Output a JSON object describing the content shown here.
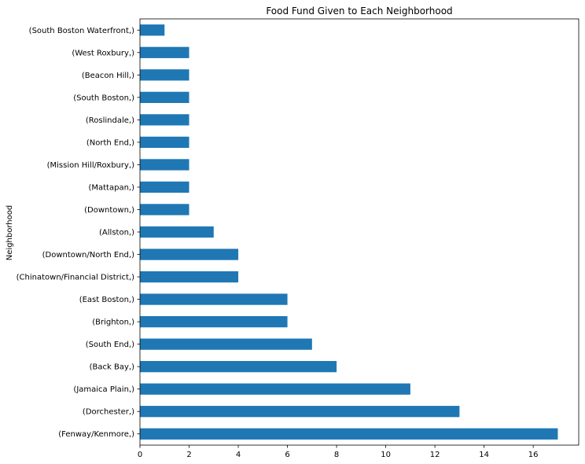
{
  "chart_data": {
    "type": "bar",
    "orientation": "horizontal",
    "title": "Food Fund Given to Each Neighborhood",
    "xlabel": "",
    "ylabel": "Neighborhood",
    "categories": [
      "(Fenway/Kenmore,)",
      "(Dorchester,)",
      "(Jamaica Plain,)",
      "(Back Bay,)",
      "(South End,)",
      "(Brighton,)",
      "(East Boston,)",
      "(Chinatown/Financial District,)",
      "(Downtown/North End,)",
      "(Allston,)",
      "(Downtown,)",
      "(Mattapan,)",
      "(Mission Hill/Roxbury,)",
      "(North End,)",
      "(Roslindale,)",
      "(South Boston,)",
      "(Beacon Hill,)",
      "(West Roxbury,)",
      "(South Boston Waterfront,)"
    ],
    "values": [
      17,
      13,
      11,
      8,
      7,
      6,
      6,
      4,
      4,
      3,
      2,
      2,
      2,
      2,
      2,
      2,
      2,
      2,
      1
    ],
    "xlim": [
      0,
      17.85
    ],
    "xticks": [
      "0",
      "2",
      "4",
      "6",
      "8",
      "10",
      "12",
      "14",
      "16"
    ],
    "bar_color": "#1f77b4",
    "grid": false,
    "legend": "none"
  }
}
